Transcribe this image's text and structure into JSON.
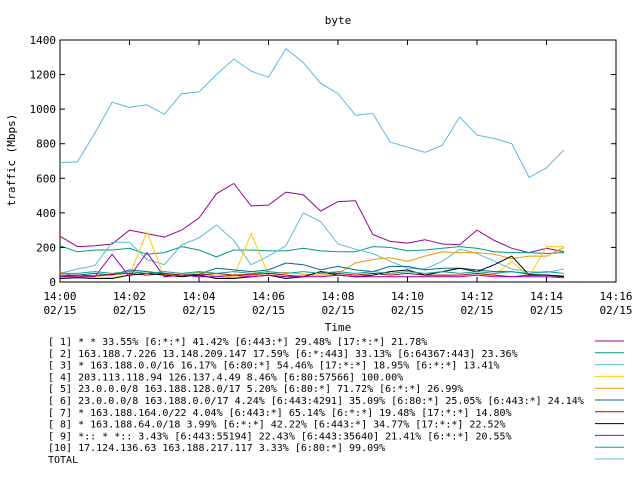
{
  "chart_data": {
    "type": "line",
    "title": "byte",
    "xlabel": "Time",
    "ylabel": "traffic (Mbps)",
    "ylim": [
      0,
      1400
    ],
    "yticks": [
      0,
      200,
      400,
      600,
      800,
      1000,
      1200,
      1400
    ],
    "xlim": [
      "14:00",
      "14:16"
    ],
    "xticks": [
      {
        "time": "14:00",
        "date": "02/15"
      },
      {
        "time": "14:02",
        "date": "02/15"
      },
      {
        "time": "14:04",
        "date": "02/15"
      },
      {
        "time": "14:06",
        "date": "02/15"
      },
      {
        "time": "14:08",
        "date": "02/15"
      },
      {
        "time": "14:10",
        "date": "02/15"
      },
      {
        "time": "14:12",
        "date": "02/15"
      },
      {
        "time": "14:14",
        "date": "02/15"
      },
      {
        "time": "14:16",
        "date": "02/15"
      }
    ],
    "grid": false,
    "legend_position": "bottom",
    "x": [
      "14:00:00",
      "14:00:30",
      "14:01:00",
      "14:01:30",
      "14:02:00",
      "14:02:30",
      "14:03:00",
      "14:03:30",
      "14:04:00",
      "14:04:30",
      "14:05:00",
      "14:05:30",
      "14:06:00",
      "14:06:30",
      "14:07:00",
      "14:07:30",
      "14:08:00",
      "14:08:30",
      "14:09:00",
      "14:09:30",
      "14:10:00",
      "14:10:30",
      "14:11:00",
      "14:11:30",
      "14:12:00",
      "14:12:30",
      "14:13:00",
      "14:13:30",
      "14:14:00",
      "14:14:30"
    ],
    "series": [
      {
        "name": "[ 1] * * 33.55% [6:*:*] 41.42% [6:443:*] 29.48% [17:*:*] 21.78%",
        "color": "#990099",
        "values": [
          265,
          205,
          210,
          220,
          300,
          280,
          260,
          300,
          370,
          510,
          570,
          440,
          445,
          520,
          505,
          410,
          465,
          470,
          275,
          235,
          225,
          245,
          220,
          215,
          300,
          240,
          195,
          170,
          195,
          175
        ]
      },
      {
        "name": "[ 2] 163.188.7.226 13.148.209.147 17.59% [6:*:443] 33.13% [6:64367:443] 23.36%",
        "color": "#009980",
        "values": [
          210,
          175,
          185,
          185,
          195,
          160,
          170,
          205,
          185,
          145,
          185,
          185,
          180,
          180,
          195,
          180,
          175,
          175,
          205,
          200,
          180,
          185,
          195,
          205,
          195,
          175,
          170,
          170,
          165,
          170
        ]
      },
      {
        "name": "[ 3] * 163.188.0.0/16 16.17% [6:80:*] 54.46% [17:*:*] 18.95% [6:*:*] 13.41%",
        "color": "#55bbdd",
        "values": [
          50,
          75,
          95,
          230,
          230,
          130,
          100,
          215,
          255,
          330,
          240,
          100,
          150,
          210,
          400,
          350,
          220,
          190,
          165,
          120,
          80,
          75,
          120,
          190,
          165,
          120,
          75,
          60,
          55,
          75
        ]
      },
      {
        "name": "[ 4] 203.113.118.94 126.137.4.49 8.46% [6:80:57566] 100.00%",
        "color": "#ffcc00",
        "values": [
          40,
          30,
          30,
          25,
          40,
          290,
          30,
          50,
          40,
          40,
          30,
          280,
          40,
          30,
          40,
          30,
          40,
          30,
          30,
          30,
          30,
          30,
          35,
          30,
          40,
          40,
          120,
          30,
          205,
          205
        ]
      },
      {
        "name": "[ 5] 23.0.0.0/8 163.188.128.0/17 5.20% [6:80:*] 71.72% [6:*:*] 26.99%",
        "color": "#ee9900",
        "values": [
          60,
          30,
          35,
          40,
          60,
          50,
          45,
          40,
          55,
          30,
          25,
          40,
          50,
          55,
          45,
          40,
          50,
          110,
          130,
          140,
          120,
          150,
          175,
          170,
          170,
          160,
          135,
          150,
          150,
          200
        ]
      },
      {
        "name": "[ 6] 23.0.0.0/8 163.188.0.0/17 4.24% [6:443:4291] 35.09% [6:80:*] 25.05% [6:443:*] 24.14%",
        "color": "#006699",
        "values": [
          40,
          40,
          50,
          40,
          70,
          60,
          50,
          40,
          45,
          80,
          70,
          60,
          70,
          110,
          100,
          70,
          90,
          70,
          60,
          90,
          90,
          70,
          80,
          80,
          70,
          60,
          60,
          45,
          40,
          35
        ]
      },
      {
        "name": "[ 7] * 163.188.164.0/22 4.04% [6:443:*] 65.14% [6:*:*] 19.48% [17:*:*] 14.80%",
        "color": "#cc0000",
        "values": [
          30,
          40,
          35,
          45,
          50,
          40,
          50,
          40,
          40,
          50,
          40,
          45,
          50,
          40,
          30,
          60,
          50,
          40,
          50,
          40,
          50,
          40,
          40,
          40,
          50,
          40,
          30,
          40,
          40,
          30
        ]
      },
      {
        "name": "[ 8] * 163.188.64.0/18 3.99% [6:*:*] 42.22% [6:443:*] 34.77% [17:*:*] 22.52%",
        "color": "#000000",
        "values": [
          20,
          25,
          20,
          20,
          40,
          50,
          40,
          30,
          40,
          20,
          20,
          30,
          40,
          20,
          30,
          60,
          40,
          30,
          40,
          60,
          70,
          40,
          60,
          80,
          60,
          100,
          150,
          40,
          40,
          30
        ]
      },
      {
        "name": "[ 9] *:: * *:: 3.43% [6:443:55194] 22.43% [6:443:35640] 21.41% [6:*:*] 20.55%",
        "color": "#9900cc",
        "values": [
          30,
          30,
          30,
          160,
          30,
          170,
          30,
          40,
          30,
          30,
          40,
          30,
          40,
          30,
          30,
          30,
          40,
          30,
          30,
          30,
          30,
          30,
          30,
          30,
          40,
          30,
          30,
          30,
          30,
          25
        ]
      },
      {
        "name": "[10] 17.124.136.63 163.188.217.117 3.33% [6:80:*] 99.09%",
        "color": "#00aa99",
        "values": [
          50,
          50,
          60,
          50,
          60,
          50,
          60,
          50,
          60,
          50,
          60,
          50,
          60,
          50,
          60,
          50,
          60,
          50,
          60,
          50,
          60,
          50,
          60,
          50,
          60,
          50,
          60,
          50,
          60,
          50
        ]
      },
      {
        "name": "TOTAL",
        "color": "#55bbdd",
        "values": [
          690,
          695,
          860,
          1040,
          1010,
          1025,
          970,
          1090,
          1100,
          1200,
          1290,
          1220,
          1185,
          1350,
          1270,
          1150,
          1090,
          965,
          975,
          810,
          780,
          750,
          790,
          955,
          850,
          830,
          800,
          605,
          660,
          765
        ]
      }
    ]
  }
}
